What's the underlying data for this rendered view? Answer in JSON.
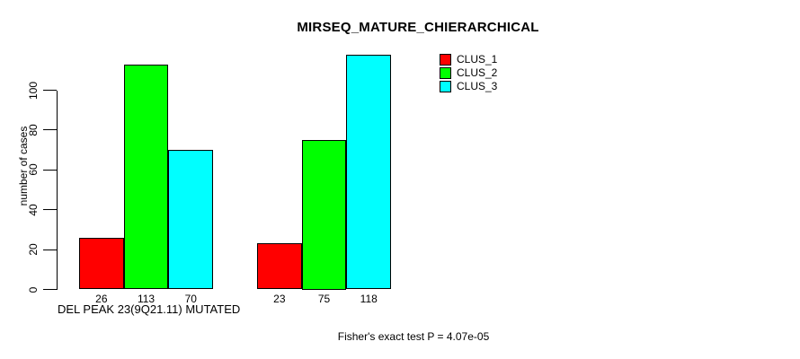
{
  "title": "MIRSEQ_MATURE_CHIERARCHICAL",
  "chart_data": {
    "type": "bar",
    "title": "MIRSEQ_MATURE_CHIERARCHICAL",
    "ylabel": "number of cases",
    "xlabel": "DEL PEAK 23(9Q21.11) MUTATED",
    "annotation": "Fisher's exact test P = 4.07e-05",
    "categories": [
      "DEL PEAK 23(9Q21.11) MUTATED",
      ""
    ],
    "series": [
      {
        "name": "CLUS_1",
        "color": "#ff0000",
        "values": [
          26,
          23
        ]
      },
      {
        "name": "CLUS_2",
        "color": "#00ff00",
        "values": [
          113,
          75
        ]
      },
      {
        "name": "CLUS_3",
        "color": "#00ffff",
        "values": [
          70,
          118
        ]
      }
    ],
    "y_ticks": [
      0,
      20,
      40,
      60,
      80,
      100
    ],
    "ylim": [
      0,
      120
    ],
    "grid": false,
    "legend_position": "top-right",
    "bar_value_labels": true,
    "bar_border_color": "#000000",
    "axis_color": "#000000"
  }
}
